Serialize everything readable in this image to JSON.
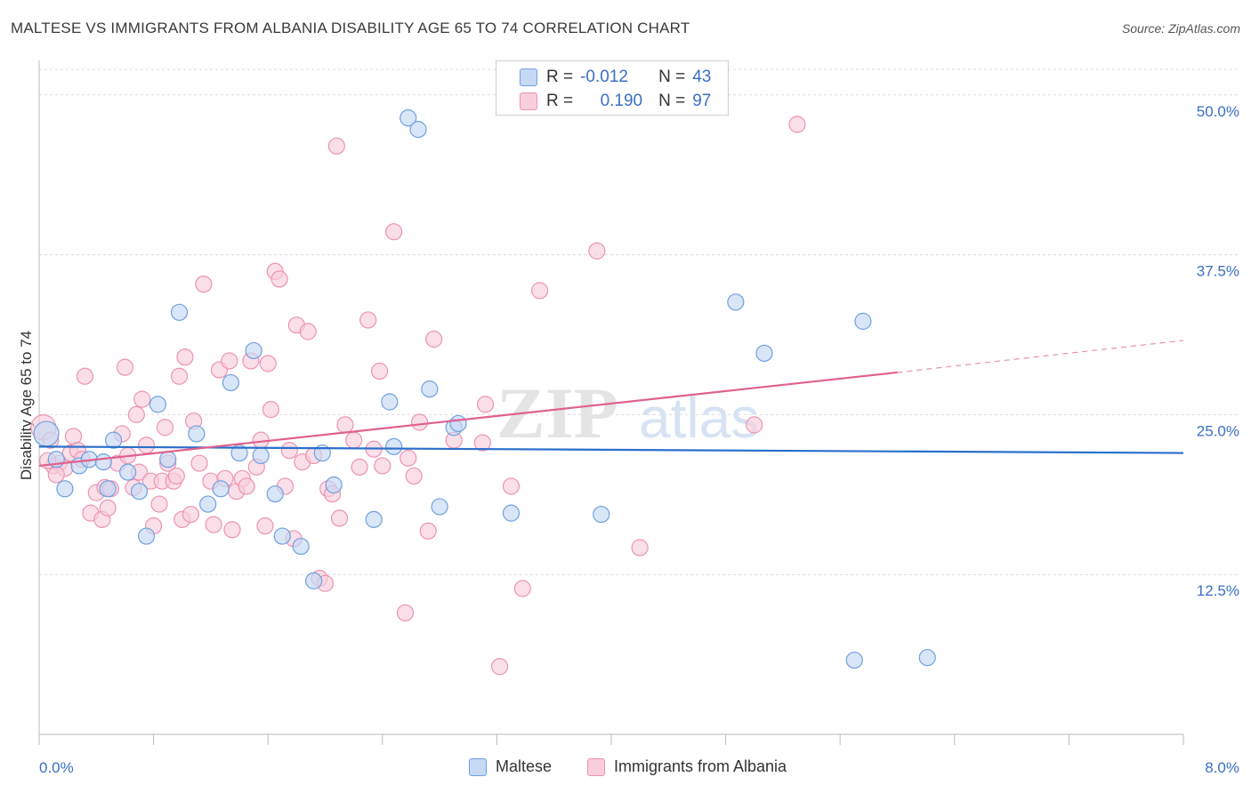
{
  "title": "MALTESE VS IMMIGRANTS FROM ALBANIA DISABILITY AGE 65 TO 74 CORRELATION CHART",
  "source": "Source: ZipAtlas.com",
  "watermark": {
    "zip": "ZIP",
    "atlas": "atlas"
  },
  "chart_data": {
    "type": "scatter",
    "title": "MALTESE VS IMMIGRANTS FROM ALBANIA DISABILITY AGE 65 TO 74 CORRELATION CHART",
    "ylabel": "Disability Age 65 to 74",
    "xlabel": "",
    "xlim": [
      0,
      8
    ],
    "ylim": [
      0,
      52
    ],
    "x_tick_labels": {
      "left": "0.0%",
      "right": "8.0%"
    },
    "y_ticks": [
      {
        "value": 12.5,
        "label": "12.5%"
      },
      {
        "value": 25.0,
        "label": "25.0%"
      },
      {
        "value": 37.5,
        "label": "37.5%"
      },
      {
        "value": 50.0,
        "label": "50.0%"
      }
    ],
    "grid": true,
    "series": [
      {
        "name": "Maltese",
        "color": "#6fa0e0",
        "fill": "#c5d9f5",
        "line_color": "#2a6fcb",
        "R": "-0.012",
        "N": "43",
        "trend": {
          "x0": 0.0,
          "y0": 22.5,
          "x1": 8.0,
          "y1": 22.0
        },
        "points": [
          [
            0.05,
            23.5
          ],
          [
            0.12,
            21.5
          ],
          [
            0.18,
            19.2
          ],
          [
            0.28,
            21.0
          ],
          [
            0.35,
            21.5
          ],
          [
            0.48,
            19.2
          ],
          [
            0.52,
            23.0
          ],
          [
            0.62,
            20.5
          ],
          [
            0.7,
            19.0
          ],
          [
            0.75,
            15.5
          ],
          [
            0.83,
            25.8
          ],
          [
            0.9,
            21.5
          ],
          [
            0.98,
            33.0
          ],
          [
            1.1,
            23.5
          ],
          [
            1.18,
            18.0
          ],
          [
            1.27,
            19.2
          ],
          [
            1.34,
            27.5
          ],
          [
            1.4,
            22.0
          ],
          [
            1.5,
            30.0
          ],
          [
            1.55,
            21.8
          ],
          [
            1.65,
            18.8
          ],
          [
            1.7,
            15.5
          ],
          [
            1.83,
            14.7
          ],
          [
            1.92,
            12.0
          ],
          [
            1.98,
            22.0
          ],
          [
            2.06,
            19.5
          ],
          [
            2.34,
            16.8
          ],
          [
            2.45,
            26.0
          ],
          [
            2.48,
            22.5
          ],
          [
            2.58,
            48.2
          ],
          [
            2.65,
            47.3
          ],
          [
            2.73,
            27.0
          ],
          [
            2.8,
            17.8
          ],
          [
            2.9,
            24.0
          ],
          [
            2.93,
            24.3
          ],
          [
            3.3,
            17.3
          ],
          [
            3.93,
            17.2
          ],
          [
            4.87,
            33.8
          ],
          [
            5.07,
            29.8
          ],
          [
            5.76,
            32.3
          ],
          [
            5.7,
            5.8
          ],
          [
            6.21,
            6.0
          ],
          [
            0.45,
            21.3
          ]
        ]
      },
      {
        "name": "Immigrants from Albania",
        "color": "#ee93b0",
        "fill": "#f8cedd",
        "line_color": "#e0608e",
        "R": "0.190",
        "N": "97",
        "trend": {
          "x0": 0.0,
          "y0": 21.0,
          "x1": 6.0,
          "y1": 28.3
        },
        "trend_dashed": {
          "x0": 6.0,
          "y0": 28.3,
          "x1": 8.0,
          "y1": 30.8
        },
        "points": [
          [
            0.03,
            24.0
          ],
          [
            0.08,
            23.0
          ],
          [
            0.1,
            21.0
          ],
          [
            0.14,
            21.2
          ],
          [
            0.18,
            20.8
          ],
          [
            0.22,
            22.0
          ],
          [
            0.24,
            23.3
          ],
          [
            0.27,
            22.2
          ],
          [
            0.3,
            21.5
          ],
          [
            0.32,
            28.0
          ],
          [
            0.36,
            17.3
          ],
          [
            0.4,
            18.9
          ],
          [
            0.44,
            16.8
          ],
          [
            0.46,
            19.3
          ],
          [
            0.48,
            17.7
          ],
          [
            0.5,
            19.2
          ],
          [
            0.55,
            21.2
          ],
          [
            0.58,
            23.5
          ],
          [
            0.6,
            28.7
          ],
          [
            0.62,
            21.8
          ],
          [
            0.66,
            19.3
          ],
          [
            0.68,
            25.0
          ],
          [
            0.7,
            20.5
          ],
          [
            0.72,
            26.2
          ],
          [
            0.75,
            22.6
          ],
          [
            0.78,
            19.8
          ],
          [
            0.8,
            16.3
          ],
          [
            0.84,
            18.0
          ],
          [
            0.86,
            19.8
          ],
          [
            0.88,
            24.0
          ],
          [
            0.9,
            21.2
          ],
          [
            0.94,
            19.8
          ],
          [
            0.96,
            20.2
          ],
          [
            0.98,
            28.0
          ],
          [
            1.0,
            16.8
          ],
          [
            1.02,
            29.5
          ],
          [
            1.06,
            17.2
          ],
          [
            1.08,
            24.5
          ],
          [
            1.12,
            21.2
          ],
          [
            1.15,
            35.2
          ],
          [
            1.2,
            19.8
          ],
          [
            1.22,
            16.4
          ],
          [
            1.26,
            28.5
          ],
          [
            1.3,
            20.0
          ],
          [
            1.33,
            29.2
          ],
          [
            1.35,
            16.0
          ],
          [
            1.38,
            19.0
          ],
          [
            1.42,
            20.0
          ],
          [
            1.45,
            19.4
          ],
          [
            1.48,
            29.2
          ],
          [
            1.52,
            20.9
          ],
          [
            1.55,
            23.0
          ],
          [
            1.58,
            16.3
          ],
          [
            1.6,
            29.0
          ],
          [
            1.62,
            25.4
          ],
          [
            1.65,
            36.2
          ],
          [
            1.68,
            35.6
          ],
          [
            1.72,
            19.4
          ],
          [
            1.75,
            22.2
          ],
          [
            1.78,
            15.3
          ],
          [
            1.8,
            32.0
          ],
          [
            1.84,
            21.3
          ],
          [
            1.88,
            31.5
          ],
          [
            1.92,
            21.8
          ],
          [
            1.96,
            12.2
          ],
          [
            2.0,
            11.8
          ],
          [
            2.02,
            19.2
          ],
          [
            2.05,
            18.8
          ],
          [
            2.08,
            46.0
          ],
          [
            2.1,
            16.9
          ],
          [
            2.14,
            24.2
          ],
          [
            2.2,
            23.0
          ],
          [
            2.24,
            20.9
          ],
          [
            2.3,
            32.4
          ],
          [
            2.34,
            22.3
          ],
          [
            2.38,
            28.4
          ],
          [
            2.48,
            39.3
          ],
          [
            2.56,
            9.5
          ],
          [
            2.58,
            21.6
          ],
          [
            2.62,
            20.2
          ],
          [
            2.66,
            24.4
          ],
          [
            2.72,
            15.9
          ],
          [
            2.76,
            30.9
          ],
          [
            2.9,
            23.0
          ],
          [
            3.1,
            22.8
          ],
          [
            3.12,
            25.8
          ],
          [
            3.22,
            5.3
          ],
          [
            3.3,
            19.4
          ],
          [
            3.38,
            11.4
          ],
          [
            3.5,
            34.7
          ],
          [
            3.9,
            37.8
          ],
          [
            4.2,
            14.6
          ],
          [
            5.0,
            24.2
          ],
          [
            5.3,
            47.7
          ],
          [
            0.06,
            21.4
          ],
          [
            0.12,
            20.3
          ],
          [
            2.4,
            21.0
          ]
        ]
      }
    ]
  },
  "stats_legend": [
    {
      "r_label": "R =",
      "r_value": "-0.012",
      "n_label": "N =",
      "n_value": "43"
    },
    {
      "r_label": "R =",
      "r_value": "0.190",
      "n_label": "N =",
      "n_value": "97"
    }
  ],
  "bottom_legend": [
    {
      "label": "Maltese"
    },
    {
      "label": "Immigrants from Albania"
    }
  ]
}
